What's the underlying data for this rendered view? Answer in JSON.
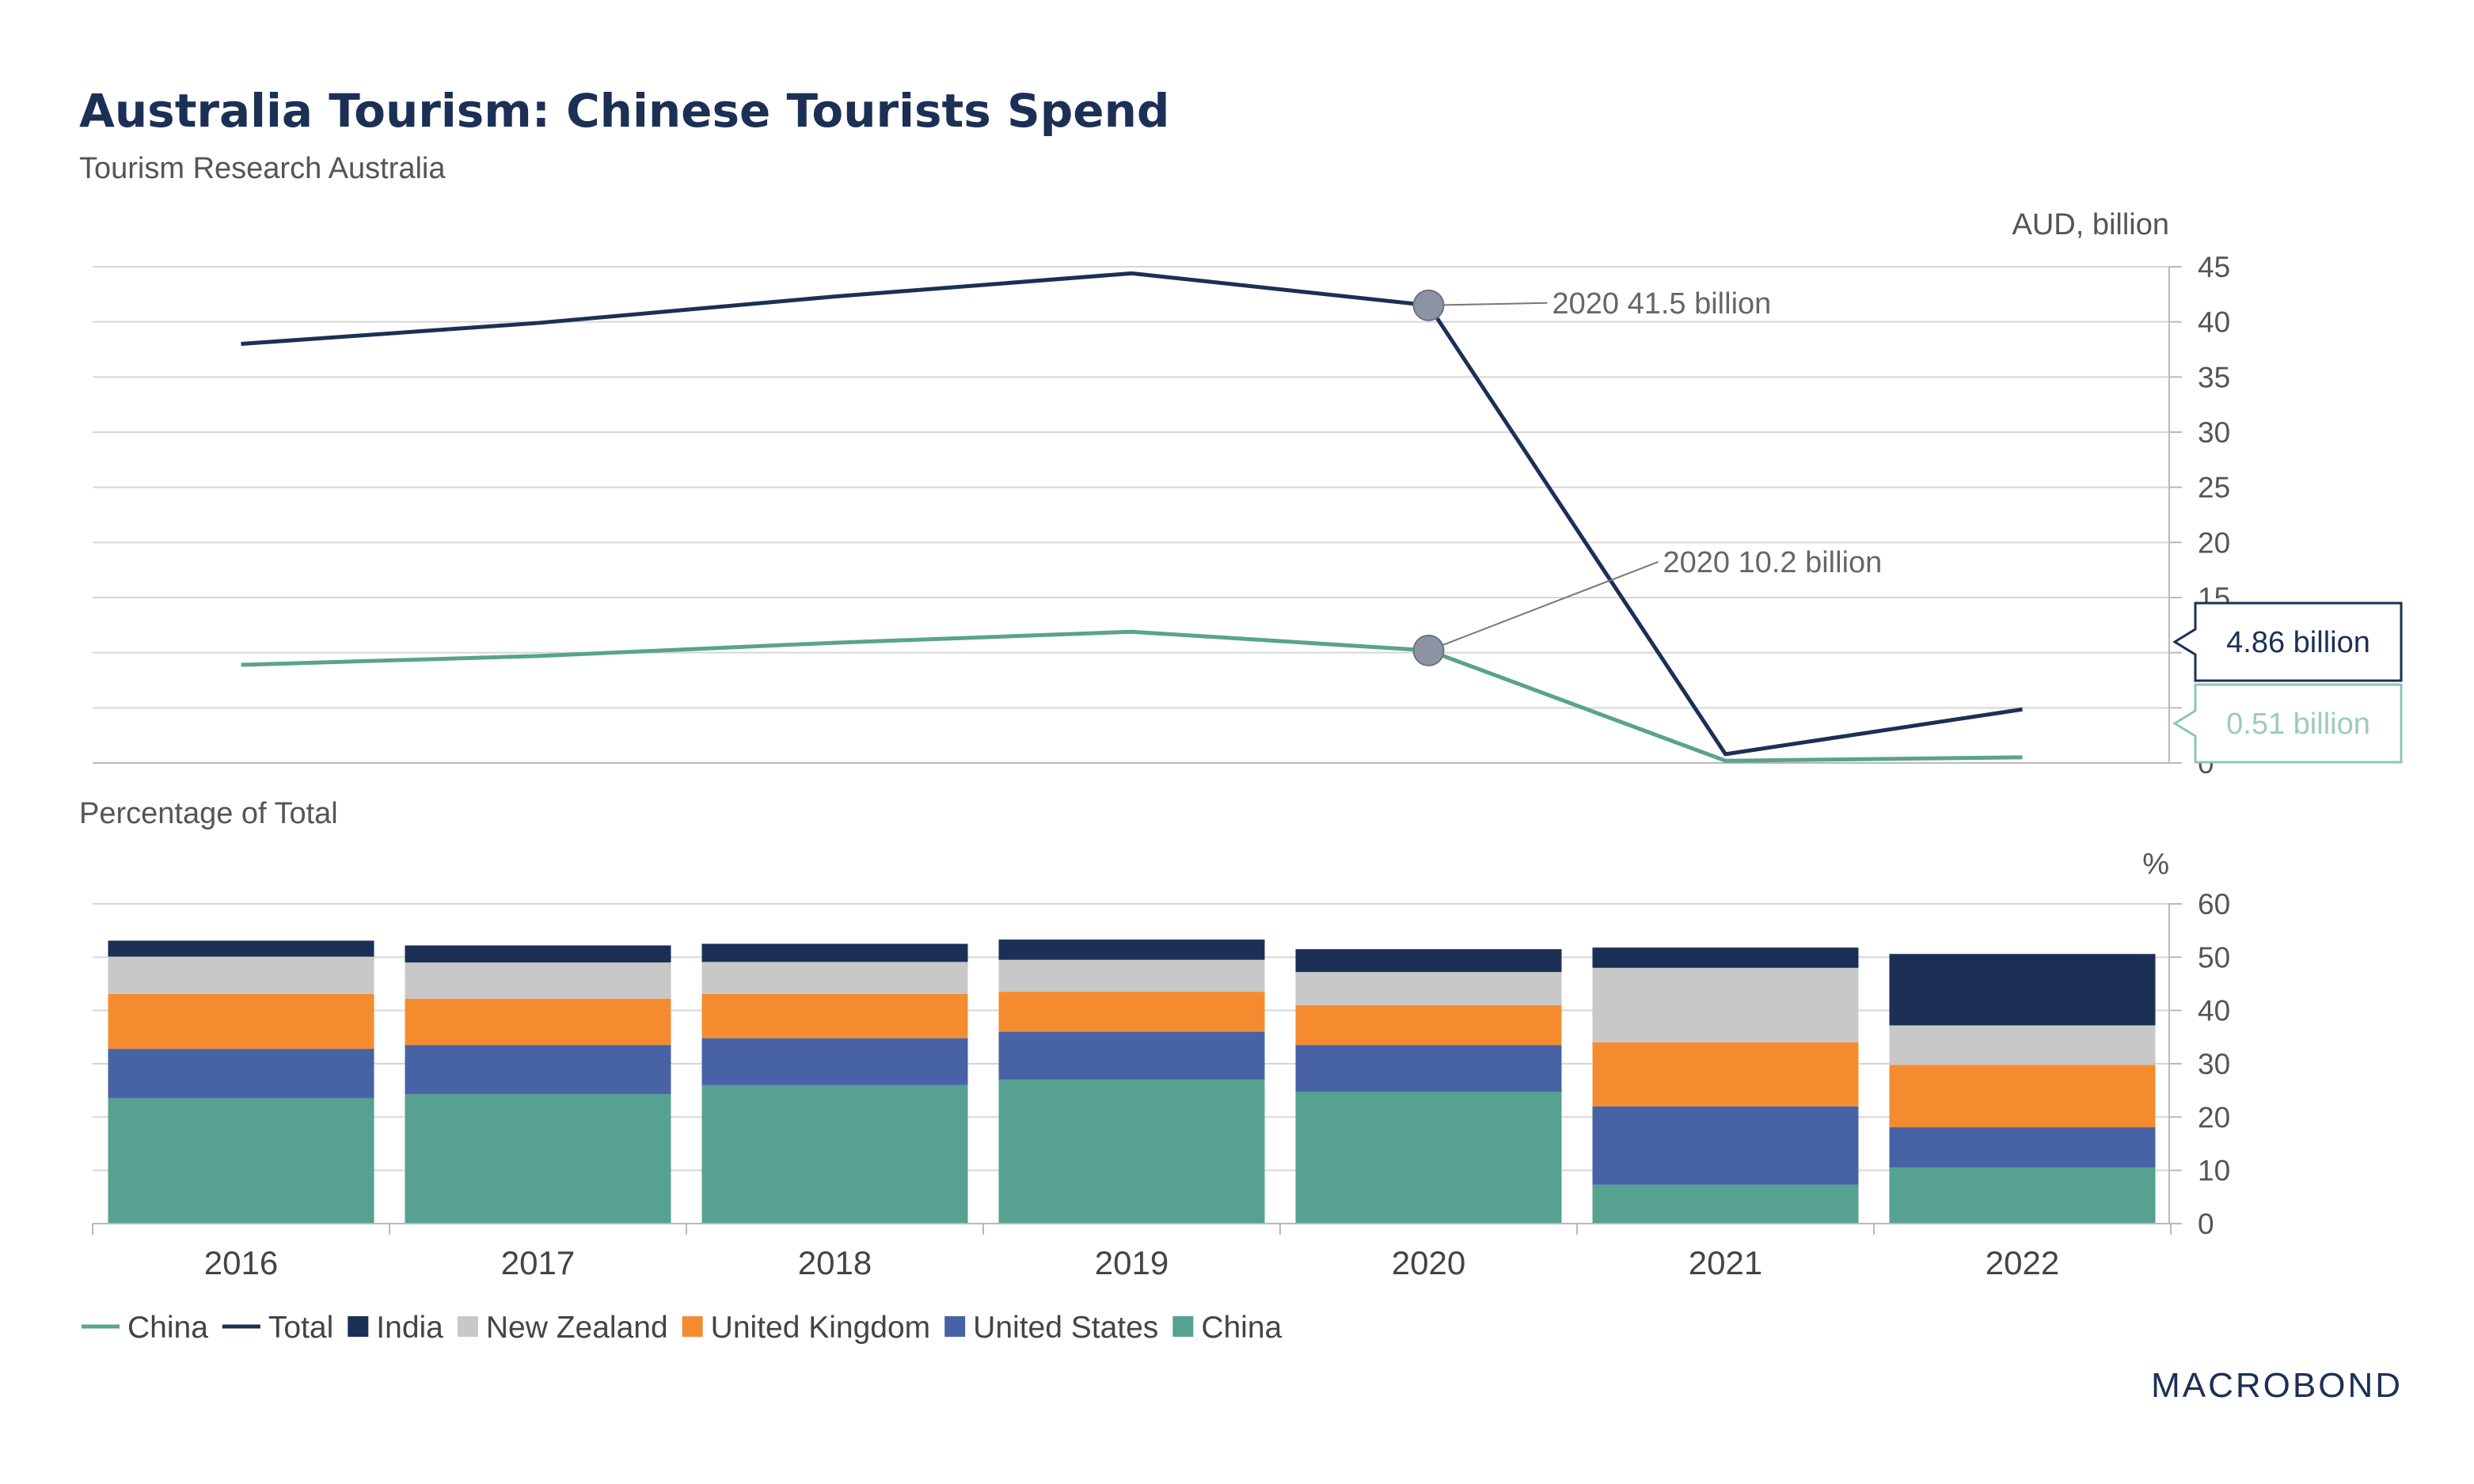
{
  "title": "Australia Tourism: Chinese Tourists Spend",
  "subtitle": "Tourism Research Australia",
  "brand": "MACROBOND",
  "colors": {
    "navy": "#1c3056",
    "teal": "#56a190",
    "china_line": "#5aa38c",
    "us": "#4863a5",
    "uk": "#f48c2f",
    "nz": "#c8c8c8",
    "india": "#1c3056",
    "marker": "#8c93a3",
    "callout_china_border": "#8cc7b4",
    "callout_china_text": "#9ccbbb"
  },
  "chart_data": [
    {
      "type": "line",
      "unit_label": "AUD, billion",
      "categories": [
        "2016",
        "2017",
        "2018",
        "2019",
        "2020",
        "2021",
        "2022"
      ],
      "ylim": [
        0,
        45
      ],
      "yticks": [
        "0",
        "5",
        "10",
        "15",
        "20",
        "25",
        "30",
        "35",
        "40",
        "45"
      ],
      "series": [
        {
          "name": "Total",
          "values": [
            38.0,
            39.9,
            42.3,
            44.4,
            41.5,
            0.8,
            4.86
          ]
        },
        {
          "name": "China",
          "values": [
            8.9,
            9.7,
            10.9,
            11.9,
            10.2,
            0.2,
            0.51
          ]
        }
      ],
      "annotations": [
        {
          "label": "2020 41.5 billion",
          "category": "2020",
          "value": 41.5
        },
        {
          "label": "2020 10.2 billion",
          "category": "2020",
          "value": 10.2
        }
      ],
      "callouts": [
        {
          "label": "4.86 billion",
          "series": "Total",
          "value": 4.86
        },
        {
          "label": "0.51 billion",
          "series": "China",
          "value": 0.51
        }
      ]
    },
    {
      "type": "bar",
      "stacked": true,
      "section_label": "Percentage of Total",
      "unit_label": "%",
      "categories": [
        "2016",
        "2017",
        "2018",
        "2019",
        "2020",
        "2021",
        "2022"
      ],
      "ylim": [
        0,
        60
      ],
      "yticks": [
        "0",
        "10",
        "20",
        "30",
        "40",
        "50",
        "60"
      ],
      "series": [
        {
          "name": "China",
          "values": [
            23.5,
            24.3,
            26.0,
            27.0,
            24.7,
            7.3,
            10.5
          ]
        },
        {
          "name": "United States",
          "values": [
            9.3,
            9.2,
            8.8,
            9.0,
            8.8,
            14.7,
            7.6
          ]
        },
        {
          "name": "United Kingdom",
          "values": [
            10.3,
            8.7,
            8.3,
            7.5,
            7.5,
            12.0,
            11.7
          ]
        },
        {
          "name": "New Zealand",
          "values": [
            7.0,
            6.8,
            6.0,
            6.0,
            6.2,
            14.0,
            7.4
          ]
        },
        {
          "name": "India",
          "values": [
            3.0,
            3.2,
            3.4,
            3.8,
            4.3,
            3.8,
            13.4
          ]
        }
      ]
    }
  ],
  "legend": [
    {
      "label": "China",
      "kind": "line",
      "color": "#5aa38c"
    },
    {
      "label": "Total",
      "kind": "line",
      "color": "#1c3056"
    },
    {
      "label": "India",
      "kind": "box",
      "color": "#1c3056"
    },
    {
      "label": "New Zealand",
      "kind": "box",
      "color": "#c8c8c8"
    },
    {
      "label": "United Kingdom",
      "kind": "box",
      "color": "#f48c2f"
    },
    {
      "label": "United States",
      "kind": "box",
      "color": "#4863a5"
    },
    {
      "label": "China",
      "kind": "box",
      "color": "#56a190"
    }
  ]
}
